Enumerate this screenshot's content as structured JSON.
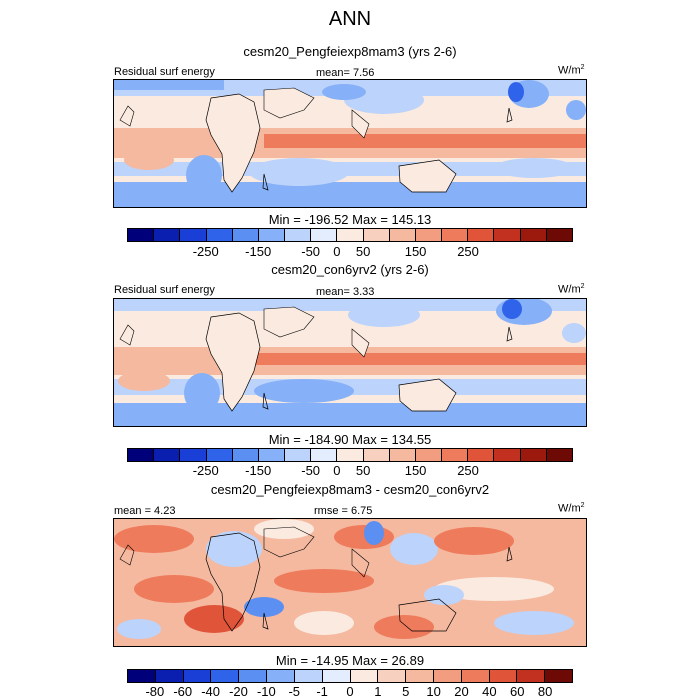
{
  "title": "ANN",
  "colors": {
    "deep_blue": "#1a3fd6",
    "mid_blue": "#5b8ff2",
    "light_blue": "#bcd3fb",
    "paper": "#fbeadf",
    "light_red": "#f5b9a0",
    "mid_red": "#ee7b5b",
    "deep_red": "#d8482a"
  },
  "panels": [
    {
      "title": "cesm20_Pengfeiexp8mam3 (yrs 2-6)",
      "left_label": "Residual surf energy",
      "center_label": "mean=   7.56",
      "units_base": "W/m",
      "units_exp": "2",
      "minmax": "Min = -196.52 Max = 145.13",
      "chart_data": {
        "type": "heatmap",
        "variable": "Residual surf energy",
        "mean": 7.56,
        "min": -196.52,
        "max": 145.13,
        "units": "W/m2",
        "colorbar_ticks": [
          "-250",
          "-150",
          "-50",
          "0",
          "50",
          "150",
          "250"
        ]
      },
      "colorbar": [
        "#00007a",
        "#0a1fb0",
        "#1a3fd6",
        "#2f63ea",
        "#5b8ff2",
        "#86b0f7",
        "#bcd3fb",
        "#e4edfd",
        "#fbeadf",
        "#f8d0bf",
        "#f5b9a0",
        "#f29d7f",
        "#ee7b5b",
        "#e0553a",
        "#c2311f",
        "#9b1a0d",
        "#6e0a05"
      ]
    },
    {
      "title": "cesm20_con6yrv2 (yrs 2-6)",
      "left_label": "Residual surf energy",
      "center_label": "mean=   3.33",
      "units_base": "W/m",
      "units_exp": "2",
      "minmax": "Min = -184.90 Max = 134.55",
      "chart_data": {
        "type": "heatmap",
        "variable": "Residual surf energy",
        "mean": 3.33,
        "min": -184.9,
        "max": 134.55,
        "units": "W/m2",
        "colorbar_ticks": [
          "-250",
          "-150",
          "-50",
          "0",
          "50",
          "150",
          "250"
        ]
      },
      "colorbar": [
        "#00007a",
        "#0a1fb0",
        "#1a3fd6",
        "#2f63ea",
        "#5b8ff2",
        "#86b0f7",
        "#bcd3fb",
        "#e4edfd",
        "#fbeadf",
        "#f8d0bf",
        "#f5b9a0",
        "#f29d7f",
        "#ee7b5b",
        "#e0553a",
        "#c2311f",
        "#9b1a0d",
        "#6e0a05"
      ]
    },
    {
      "title": "cesm20_Pengfeiexp8mam3 - cesm20_con6yrv2",
      "left_label": "mean =   4.23",
      "center_label": "rmse =   6.75",
      "units_base": "W/m",
      "units_exp": "2",
      "minmax": "Min = -14.95 Max = 26.89",
      "chart_data": {
        "type": "heatmap",
        "mean": 4.23,
        "rmse": 6.75,
        "min": -14.95,
        "max": 26.89,
        "units": "W/m2",
        "colorbar_ticks": [
          "-80",
          "-60",
          "-40",
          "-20",
          "-10",
          "-5",
          "-1",
          "0",
          "1",
          "5",
          "10",
          "20",
          "40",
          "60",
          "80"
        ]
      },
      "colorbar": [
        "#00007a",
        "#0a1fb0",
        "#1a3fd6",
        "#2f63ea",
        "#5b8ff2",
        "#86b0f7",
        "#bcd3fb",
        "#e4edfd",
        "#fbeadf",
        "#f8d0bf",
        "#f5b9a0",
        "#f29d7f",
        "#ee7b5b",
        "#e0553a",
        "#c2311f",
        "#6e0a05"
      ]
    }
  ]
}
